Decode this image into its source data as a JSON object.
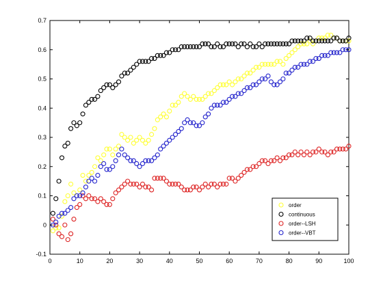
{
  "chart_data": {
    "type": "scatter",
    "title": "",
    "xlabel": "",
    "ylabel": "",
    "xlim": [
      0,
      100
    ],
    "ylim": [
      -0.1,
      0.7
    ],
    "xticks": [
      0,
      10,
      20,
      30,
      40,
      50,
      60,
      70,
      80,
      90,
      100
    ],
    "yticks": [
      -0.1,
      0,
      0.1,
      0.2,
      0.3,
      0.4,
      0.5,
      0.6,
      0.7
    ],
    "xtick_labels": [
      "0",
      "10",
      "20",
      "30",
      "40",
      "50",
      "60",
      "70",
      "80",
      "90",
      "100"
    ],
    "ytick_labels": [
      "-0.1",
      "0",
      "0.1",
      "0.2",
      "0.3",
      "0.4",
      "0.5",
      "0.6",
      "0.7"
    ],
    "grid": false,
    "legend_position": "bottom-right",
    "marker": "open-circle",
    "x": [
      1,
      2,
      3,
      4,
      5,
      6,
      7,
      8,
      9,
      10,
      11,
      12,
      13,
      14,
      15,
      16,
      17,
      18,
      19,
      20,
      21,
      22,
      23,
      24,
      25,
      26,
      27,
      28,
      29,
      30,
      31,
      32,
      33,
      34,
      35,
      36,
      37,
      38,
      39,
      40,
      41,
      42,
      43,
      44,
      45,
      46,
      47,
      48,
      49,
      50,
      51,
      52,
      53,
      54,
      55,
      56,
      57,
      58,
      59,
      60,
      61,
      62,
      63,
      64,
      65,
      66,
      67,
      68,
      69,
      70,
      71,
      72,
      73,
      74,
      75,
      76,
      77,
      78,
      79,
      80,
      81,
      82,
      83,
      84,
      85,
      86,
      87,
      88,
      89,
      90,
      91,
      92,
      93,
      94,
      95,
      96,
      97,
      98,
      99,
      100
    ],
    "series": [
      {
        "name": "order",
        "color": "#ffff33",
        "values": [
          -0.02,
          -0.01,
          -0.01,
          0.03,
          0.08,
          0.1,
          0.14,
          0.11,
          0.1,
          0.12,
          0.17,
          0.15,
          0.17,
          0.18,
          0.2,
          0.23,
          0.22,
          0.24,
          0.26,
          0.26,
          0.24,
          0.26,
          0.27,
          0.31,
          0.3,
          0.29,
          0.3,
          0.28,
          0.29,
          0.3,
          0.29,
          0.28,
          0.29,
          0.31,
          0.33,
          0.36,
          0.37,
          0.38,
          0.37,
          0.39,
          0.41,
          0.41,
          0.42,
          0.44,
          0.45,
          0.44,
          0.43,
          0.44,
          0.43,
          0.43,
          0.43,
          0.44,
          0.45,
          0.45,
          0.46,
          0.47,
          0.48,
          0.48,
          0.48,
          0.49,
          0.48,
          0.49,
          0.5,
          0.5,
          0.51,
          0.52,
          0.52,
          0.53,
          0.54,
          0.54,
          0.55,
          0.55,
          0.55,
          0.55,
          0.55,
          0.56,
          0.56,
          0.55,
          0.57,
          0.58,
          0.59,
          0.6,
          0.61,
          0.62,
          0.62,
          0.62,
          0.63,
          0.62,
          0.63,
          0.64,
          0.64,
          0.64,
          0.65,
          0.65,
          0.64,
          0.64,
          0.63,
          0.63,
          0.63,
          0.63
        ]
      },
      {
        "name": "continuous",
        "color": "#000000",
        "values": [
          0.04,
          0.09,
          0.15,
          0.23,
          0.27,
          0.28,
          0.33,
          0.35,
          0.34,
          0.35,
          0.38,
          0.41,
          0.42,
          0.43,
          0.43,
          0.44,
          0.46,
          0.47,
          0.48,
          0.48,
          0.47,
          0.48,
          0.49,
          0.51,
          0.52,
          0.52,
          0.53,
          0.54,
          0.55,
          0.56,
          0.56,
          0.56,
          0.56,
          0.57,
          0.57,
          0.58,
          0.58,
          0.58,
          0.59,
          0.59,
          0.6,
          0.6,
          0.6,
          0.61,
          0.61,
          0.61,
          0.61,
          0.61,
          0.61,
          0.61,
          0.62,
          0.62,
          0.62,
          0.61,
          0.61,
          0.62,
          0.61,
          0.61,
          0.62,
          0.62,
          0.62,
          0.62,
          0.61,
          0.62,
          0.62,
          0.61,
          0.62,
          0.61,
          0.61,
          0.62,
          0.61,
          0.62,
          0.62,
          0.62,
          0.62,
          0.62,
          0.62,
          0.62,
          0.62,
          0.62,
          0.63,
          0.63,
          0.63,
          0.63,
          0.63,
          0.64,
          0.64,
          0.63,
          0.63,
          0.63,
          0.63,
          0.63,
          0.63,
          0.63,
          0.64,
          0.64,
          0.63,
          0.63,
          0.63,
          0.64
        ]
      },
      {
        "name": "order--LSH",
        "color": "#dd2222",
        "values": [
          0.02,
          0.0,
          -0.03,
          -0.04,
          0.0,
          -0.05,
          -0.03,
          0.02,
          0.06,
          0.07,
          0.1,
          0.09,
          0.1,
          0.09,
          0.09,
          0.08,
          0.09,
          0.08,
          0.07,
          0.07,
          0.09,
          0.11,
          0.12,
          0.13,
          0.14,
          0.15,
          0.14,
          0.14,
          0.14,
          0.13,
          0.14,
          0.13,
          0.13,
          0.12,
          0.16,
          0.16,
          0.16,
          0.16,
          0.15,
          0.14,
          0.14,
          0.14,
          0.14,
          0.13,
          0.12,
          0.12,
          0.12,
          0.13,
          0.13,
          0.12,
          0.13,
          0.14,
          0.13,
          0.14,
          0.14,
          0.13,
          0.14,
          0.14,
          0.14,
          0.16,
          0.16,
          0.15,
          0.16,
          0.17,
          0.18,
          0.19,
          0.19,
          0.2,
          0.2,
          0.21,
          0.22,
          0.22,
          0.21,
          0.22,
          0.22,
          0.23,
          0.22,
          0.23,
          0.23,
          0.24,
          0.24,
          0.25,
          0.24,
          0.25,
          0.24,
          0.25,
          0.24,
          0.25,
          0.25,
          0.26,
          0.25,
          0.25,
          0.24,
          0.25,
          0.25,
          0.26,
          0.26,
          0.26,
          0.26,
          0.27
        ]
      },
      {
        "name": "order--VBT",
        "color": "#2222cc",
        "values": [
          0.0,
          0.01,
          0.03,
          0.04,
          0.04,
          0.05,
          0.06,
          0.09,
          0.1,
          0.1,
          0.11,
          0.13,
          0.15,
          0.16,
          0.15,
          0.17,
          0.2,
          0.21,
          0.19,
          0.19,
          0.2,
          0.22,
          0.24,
          0.26,
          0.24,
          0.23,
          0.22,
          0.22,
          0.21,
          0.2,
          0.21,
          0.22,
          0.22,
          0.22,
          0.23,
          0.24,
          0.26,
          0.27,
          0.28,
          0.29,
          0.3,
          0.31,
          0.32,
          0.33,
          0.35,
          0.36,
          0.35,
          0.35,
          0.34,
          0.34,
          0.35,
          0.37,
          0.38,
          0.4,
          0.41,
          0.41,
          0.41,
          0.42,
          0.42,
          0.43,
          0.44,
          0.44,
          0.45,
          0.45,
          0.46,
          0.47,
          0.47,
          0.48,
          0.48,
          0.49,
          0.5,
          0.5,
          0.51,
          0.49,
          0.48,
          0.48,
          0.49,
          0.5,
          0.52,
          0.52,
          0.53,
          0.54,
          0.54,
          0.55,
          0.55,
          0.55,
          0.56,
          0.56,
          0.57,
          0.57,
          0.58,
          0.58,
          0.58,
          0.59,
          0.59,
          0.59,
          0.59,
          0.6,
          0.6,
          0.6
        ]
      }
    ]
  }
}
